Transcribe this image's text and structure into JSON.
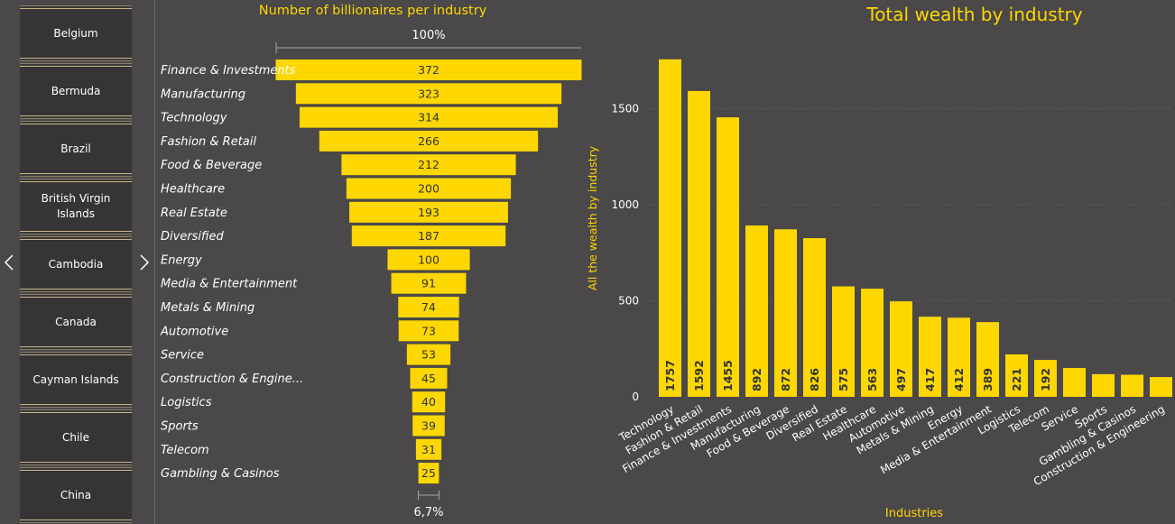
{
  "slicer": {
    "items": [
      "Belgium",
      "Bermuda",
      "Brazil",
      "British Virgin Islands",
      "Cambodia",
      "Canada",
      "Cayman Islands",
      "Chile",
      "China"
    ]
  },
  "colors": {
    "accent": "#ffd700",
    "background": "#4a4848",
    "slicer_bg": "#363434",
    "text": "#ffffff"
  },
  "chart_data": [
    {
      "type": "bar",
      "orientation": "funnel",
      "title": "Number of billionaires per industry",
      "top_label": "100%",
      "bottom_label": "6,7%",
      "categories": [
        "Finance & Investments",
        "Manufacturing",
        "Technology",
        "Fashion & Retail",
        "Food & Beverage",
        "Healthcare",
        "Real Estate",
        "Diversified",
        "Energy",
        "Media & Entertainment",
        "Metals & Mining",
        "Automotive",
        "Service",
        "Construction & Engine...",
        "Logistics",
        "Sports",
        "Telecom",
        "Gambling & Casinos"
      ],
      "values": [
        372,
        323,
        314,
        266,
        212,
        200,
        193,
        187,
        100,
        91,
        74,
        73,
        53,
        45,
        40,
        39,
        31,
        25
      ]
    },
    {
      "type": "bar",
      "title": "Total wealth by industry",
      "xlabel": "Industries",
      "ylabel": "All the wealth by industry",
      "ylim": [
        0,
        1750
      ],
      "yticks": [
        0,
        500,
        1000,
        1500
      ],
      "grid": true,
      "categories": [
        "Technology",
        "Fashion & Retail",
        "Finance & Investments",
        "Manufacturing",
        "Food & Beverage",
        "Diversified",
        "Real Estate",
        "Healthcare",
        "Automotive",
        "Metals & Mining",
        "Energy",
        "Media & Entertainment",
        "Logistics",
        "Telecom",
        "Service",
        "Sports",
        "Gambling & Casinos",
        "Construction & Engineering"
      ],
      "values": [
        1757,
        1592,
        1455,
        892,
        872,
        826,
        575,
        563,
        497,
        417,
        412,
        389,
        221,
        192,
        150,
        118,
        115,
        103
      ],
      "value_labels": [
        "1757",
        "1592",
        "1455",
        "892",
        "872",
        "826",
        "575",
        "563",
        "497",
        "417",
        "412",
        "389",
        "221",
        "192",
        "",
        "",
        "",
        ""
      ]
    }
  ]
}
